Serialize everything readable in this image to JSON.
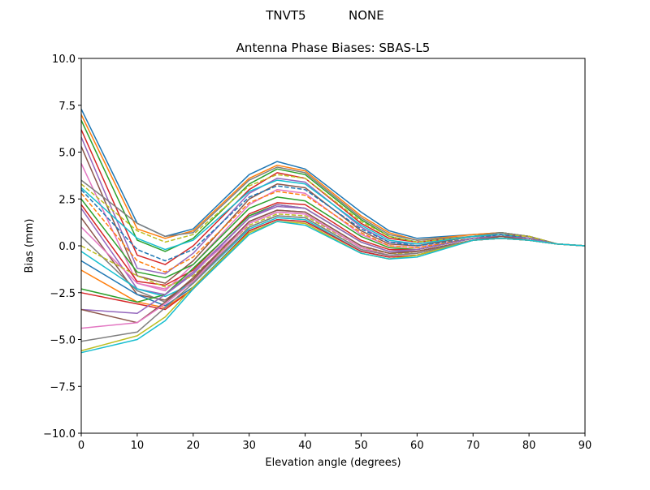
{
  "suptitle": "TNVT5           NONE",
  "chart_data": {
    "type": "line",
    "title": "Antenna Phase Biases: SBAS-L5",
    "xlabel": "Elevation angle (degrees)",
    "ylabel": "Bias (mm)",
    "xlim": [
      0,
      90
    ],
    "ylim": [
      -10,
      10
    ],
    "xticks": [
      0,
      10,
      20,
      30,
      40,
      50,
      60,
      70,
      80,
      90
    ],
    "xtick_labels": [
      "0",
      "10",
      "20",
      "30",
      "40",
      "50",
      "60",
      "70",
      "80",
      "90"
    ],
    "yticks": [
      -10,
      -7.5,
      -5,
      -2.5,
      0,
      2.5,
      5,
      7.5,
      10
    ],
    "ytick_labels": [
      "−10.0",
      "−7.5",
      "−5.0",
      "−2.5",
      "0.0",
      "2.5",
      "5.0",
      "7.5",
      "10.0"
    ],
    "grid": false,
    "x": [
      0,
      10,
      15,
      20,
      30,
      35,
      40,
      50,
      55,
      60,
      70,
      75,
      80,
      85,
      90
    ],
    "colors": [
      "#1f77b4",
      "#ff7f0e",
      "#2ca02c",
      "#d62728",
      "#9467bd",
      "#8c564b",
      "#e377c2",
      "#7f7f7f",
      "#bcbd22",
      "#17becf"
    ],
    "series": [
      {
        "values": [
          7.3,
          1.2,
          0.5,
          0.9,
          3.8,
          4.5,
          4.1,
          1.8,
          0.8,
          0.4,
          0.6,
          0.7,
          0.5,
          0.1,
          0
        ]
      },
      {
        "values": [
          7.0,
          0.9,
          0.4,
          0.8,
          3.6,
          4.3,
          4.0,
          1.6,
          0.7,
          0.3,
          0.6,
          0.7,
          0.5,
          0.1,
          0
        ]
      },
      {
        "values": [
          6.7,
          0.3,
          -0.3,
          0.4,
          3.3,
          4.1,
          3.8,
          1.4,
          0.5,
          0.2,
          0.5,
          0.7,
          0.5,
          0.1,
          0
        ]
      },
      {
        "values": [
          6.2,
          -0.5,
          -1.0,
          0.0,
          3.0,
          3.9,
          3.6,
          1.2,
          0.4,
          0.2,
          0.5,
          0.6,
          0.5,
          0.1,
          0
        ]
      },
      {
        "values": [
          5.8,
          -1.2,
          -1.5,
          -0.4,
          2.8,
          3.6,
          3.4,
          1.0,
          0.2,
          0.1,
          0.5,
          0.6,
          0.4,
          0.1,
          0
        ]
      },
      {
        "values": [
          5.3,
          -1.6,
          -2.0,
          -0.8,
          2.5,
          3.3,
          3.1,
          0.8,
          0.1,
          0.0,
          0.5,
          0.6,
          0.4,
          0.1,
          0
        ]
      },
      {
        "values": [
          4.4,
          -2.0,
          -2.4,
          -1.0,
          2.2,
          3.0,
          2.8,
          0.6,
          0.0,
          -0.1,
          0.4,
          0.6,
          0.4,
          0.1,
          0
        ]
      },
      {
        "values": [
          3.5,
          1.2,
          0.5,
          0.7,
          3.5,
          4.2,
          3.9,
          1.5,
          0.6,
          0.3,
          0.5,
          0.7,
          0.5,
          0.1,
          0
        ]
      },
      {
        "values": [
          3.3,
          0.8,
          0.2,
          0.6,
          3.2,
          3.8,
          3.6,
          1.3,
          0.5,
          0.2,
          0.5,
          0.6,
          0.5,
          0.1,
          0
        ],
        "style": "dashed"
      },
      {
        "values": [
          3.1,
          0.4,
          -0.2,
          0.3,
          2.9,
          3.5,
          3.3,
          1.1,
          0.3,
          0.1,
          0.5,
          0.6,
          0.4,
          0.1,
          0
        ]
      },
      {
        "values": [
          3.0,
          -0.2,
          -0.8,
          -0.2,
          2.6,
          3.2,
          3.0,
          0.9,
          0.2,
          0.0,
          0.4,
          0.6,
          0.4,
          0.1,
          0
        ],
        "style": "dashed"
      },
      {
        "values": [
          2.8,
          -0.8,
          -1.4,
          -0.6,
          2.3,
          2.9,
          2.7,
          0.7,
          0.0,
          -0.1,
          0.4,
          0.5,
          0.4,
          0.1,
          0
        ],
        "style": "dashed"
      },
      {
        "values": [
          2.5,
          -1.4,
          -1.7,
          -1.0,
          2.0,
          2.6,
          2.4,
          0.5,
          -0.1,
          -0.2,
          0.4,
          0.5,
          0.4,
          0.1,
          0
        ]
      },
      {
        "values": [
          2.2,
          -1.9,
          -2.1,
          -1.3,
          1.7,
          2.3,
          2.2,
          0.3,
          -0.2,
          -0.2,
          0.4,
          0.5,
          0.4,
          0.1,
          0
        ]
      },
      {
        "values": [
          2.0,
          -2.3,
          -2.6,
          -1.5,
          1.5,
          2.1,
          2.0,
          0.2,
          -0.3,
          -0.3,
          0.3,
          0.5,
          0.3,
          0.1,
          0
        ]
      },
      {
        "values": [
          1.5,
          -2.6,
          -2.9,
          -1.8,
          1.3,
          1.9,
          1.8,
          0.0,
          -0.4,
          -0.3,
          0.3,
          0.5,
          0.3,
          0.1,
          0
        ]
      },
      {
        "values": [
          1.0,
          -2.0,
          -2.3,
          -1.4,
          1.2,
          1.8,
          1.7,
          -0.1,
          -0.5,
          -0.4,
          0.3,
          0.4,
          0.3,
          0.1,
          0
        ]
      },
      {
        "values": [
          0.5,
          -2.4,
          -3.0,
          -1.9,
          1.0,
          1.6,
          1.5,
          -0.2,
          -0.5,
          -0.4,
          0.3,
          0.4,
          0.3,
          0.1,
          0
        ]
      },
      {
        "values": [
          0.0,
          -1.6,
          -2.2,
          -1.6,
          1.1,
          1.7,
          1.6,
          -0.1,
          -0.4,
          -0.4,
          0.3,
          0.4,
          0.3,
          0.1,
          0
        ],
        "style": "dashed"
      },
      {
        "values": [
          -0.3,
          -2.3,
          -2.7,
          -2.0,
          0.9,
          1.5,
          1.4,
          -0.3,
          -0.6,
          -0.5,
          0.3,
          0.4,
          0.3,
          0.1,
          0
        ]
      },
      {
        "values": [
          -0.8,
          -2.6,
          -3.2,
          -2.2,
          0.8,
          1.4,
          1.3,
          -0.3,
          -0.6,
          -0.5,
          0.3,
          0.4,
          0.3,
          0.1,
          0
        ]
      },
      {
        "values": [
          -1.3,
          -3.0,
          -3.3,
          -2.3,
          0.7,
          1.3,
          1.2,
          -0.4,
          -0.7,
          -0.5,
          0.3,
          0.4,
          0.3,
          0.1,
          0
        ]
      },
      {
        "values": [
          -2.3,
          -3.0,
          -2.6,
          -1.2,
          1.6,
          2.2,
          2.0,
          0.2,
          -0.3,
          -0.2,
          0.4,
          0.5,
          0.4,
          0.1,
          0
        ]
      },
      {
        "values": [
          -2.5,
          -3.1,
          -3.4,
          -2.3,
          0.8,
          1.4,
          1.3,
          -0.3,
          -0.6,
          -0.5,
          0.3,
          0.4,
          0.3,
          0.1,
          0
        ]
      },
      {
        "values": [
          -3.4,
          -3.6,
          -2.6,
          -1.4,
          1.5,
          2.2,
          2.0,
          0.2,
          -0.3,
          -0.2,
          0.4,
          0.5,
          0.4,
          0.1,
          0
        ]
      },
      {
        "values": [
          -3.4,
          -4.1,
          -3.0,
          -1.7,
          1.3,
          1.9,
          1.8,
          0.0,
          -0.4,
          -0.3,
          0.3,
          0.5,
          0.3,
          0.1,
          0
        ]
      },
      {
        "values": [
          -4.4,
          -4.1,
          -3.1,
          -1.9,
          1.2,
          1.8,
          1.7,
          -0.1,
          -0.5,
          -0.4,
          0.3,
          0.4,
          0.3,
          0.1,
          0
        ]
      },
      {
        "values": [
          -5.1,
          -4.6,
          -3.3,
          -2.0,
          1.0,
          1.6,
          1.5,
          -0.2,
          -0.5,
          -0.4,
          0.3,
          0.4,
          0.3,
          0.1,
          0
        ]
      },
      {
        "values": [
          -5.6,
          -4.8,
          -3.8,
          -2.2,
          0.7,
          1.3,
          1.2,
          -0.4,
          -0.7,
          -0.5,
          0.3,
          0.4,
          0.3,
          0.1,
          0
        ]
      },
      {
        "values": [
          -5.7,
          -5.0,
          -4.0,
          -2.3,
          0.6,
          1.3,
          1.1,
          -0.4,
          -0.7,
          -0.6,
          0.3,
          0.4,
          0.3,
          0.1,
          0
        ]
      }
    ]
  }
}
